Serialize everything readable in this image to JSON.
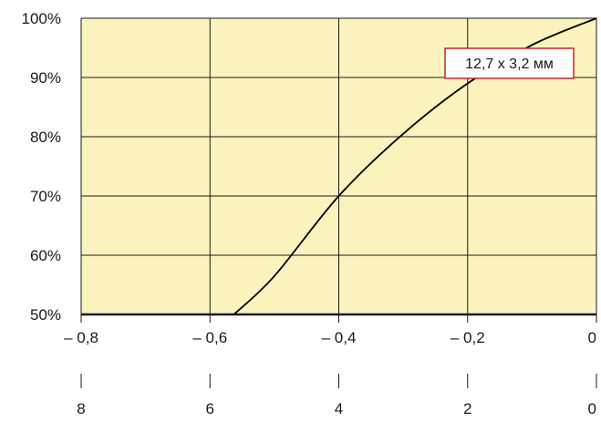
{
  "chart_data": {
    "type": "line",
    "title": "",
    "xlabel": "",
    "ylabel": "",
    "x_axis": {
      "range": [
        -0.8,
        0
      ],
      "ticks": [
        -0.8,
        -0.6,
        -0.4,
        -0.2,
        0
      ],
      "tick_labels": [
        "– 0,8",
        "– 0,6",
        "– 0,4",
        "– 0,2",
        "0"
      ]
    },
    "secondary_x_axis": {
      "range": [
        8,
        0
      ],
      "ticks": [
        8,
        6,
        4,
        2,
        0
      ],
      "tick_labels": [
        "8",
        "6",
        "4",
        "2",
        "0"
      ]
    },
    "y_axis": {
      "range": [
        50,
        100
      ],
      "ticks": [
        50,
        60,
        70,
        80,
        90,
        100
      ],
      "tick_labels": [
        "50%",
        "60%",
        "70%",
        "80%",
        "90%",
        "100%"
      ]
    },
    "grid": true,
    "series": [
      {
        "name": "12,7 x 3,2 мм",
        "x": [
          -0.563,
          -0.5,
          -0.4,
          -0.3,
          -0.2,
          -0.1,
          0
        ],
        "y": [
          50,
          56.5,
          70,
          80.5,
          89,
          95.5,
          100
        ]
      }
    ],
    "annotations": [
      {
        "text": "12,7 x 3,2 мм",
        "position": "top-right"
      }
    ],
    "colors": {
      "plot_background": "#fbf3bd",
      "grid": "#1a1a1a",
      "line": "#000000",
      "annotation_border": "#c0272d"
    }
  }
}
